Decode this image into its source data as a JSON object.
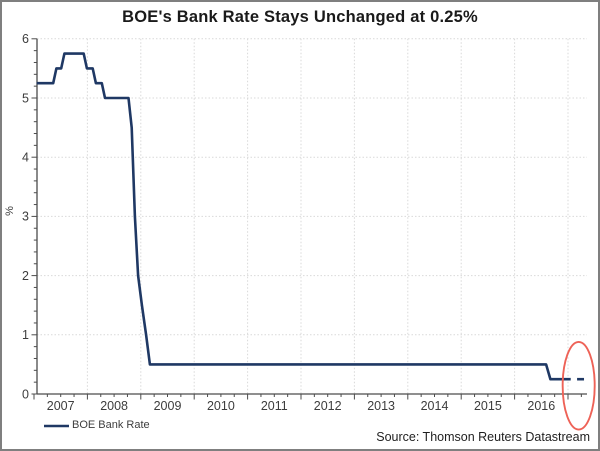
{
  "chart": {
    "title": "BOE's Bank Rate Stays Unchanged at 0.25%",
    "y_axis_title": "%",
    "legend_label": "BOE Bank Rate",
    "source": "Source: Thomson Reuters Datastream"
  },
  "colors": {
    "line": "#1f3864",
    "annotation_ellipse": "#ee6257",
    "grid": "#d9d9d9",
    "axis": "#4c4c4c",
    "tick_text": "#3d3d3d"
  },
  "chart_data": {
    "type": "line",
    "title": "BOE's Bank Rate Stays Unchanged at 0.25%",
    "xlabel": "",
    "ylabel": "%",
    "ylim": [
      0,
      6
    ],
    "xlim": [
      2007,
      2017.35
    ],
    "grid": true,
    "legend_position": "bottom-left",
    "x_ticks": [
      "2007",
      "2008",
      "2009",
      "2010",
      "2011",
      "2012",
      "2013",
      "2014",
      "2015",
      "2016"
    ],
    "y_ticks": [
      0,
      1,
      2,
      3,
      4,
      5,
      6
    ],
    "series": [
      {
        "name": "BOE Bank Rate",
        "color": "#1f3864",
        "points": [
          [
            2007.05,
            5.25
          ],
          [
            2007.36,
            5.25
          ],
          [
            2007.42,
            5.5
          ],
          [
            2007.51,
            5.5
          ],
          [
            2007.57,
            5.75
          ],
          [
            2007.93,
            5.75
          ],
          [
            2007.99,
            5.5
          ],
          [
            2008.1,
            5.5
          ],
          [
            2008.16,
            5.25
          ],
          [
            2008.27,
            5.25
          ],
          [
            2008.33,
            5.0
          ],
          [
            2008.77,
            5.0
          ],
          [
            2008.83,
            4.5
          ],
          [
            2008.89,
            3.0
          ],
          [
            2008.95,
            2.0
          ],
          [
            2009.02,
            1.5
          ],
          [
            2009.1,
            1.0
          ],
          [
            2009.17,
            0.5
          ],
          [
            2016.59,
            0.5
          ],
          [
            2016.67,
            0.25
          ],
          [
            2017.05,
            0.25
          ]
        ]
      }
    ],
    "latest_value_marker": {
      "value": 0.25,
      "x_start": 2017.17,
      "x_end": 2017.3
    },
    "annotation": {
      "type": "ellipse",
      "purpose": "highlights latest unchanged rate of 0.25%",
      "center_x": 2017.2,
      "center_value": 0.14,
      "rx_years": 0.3,
      "ry_units": 0.74,
      "color": "#ee6257"
    }
  }
}
